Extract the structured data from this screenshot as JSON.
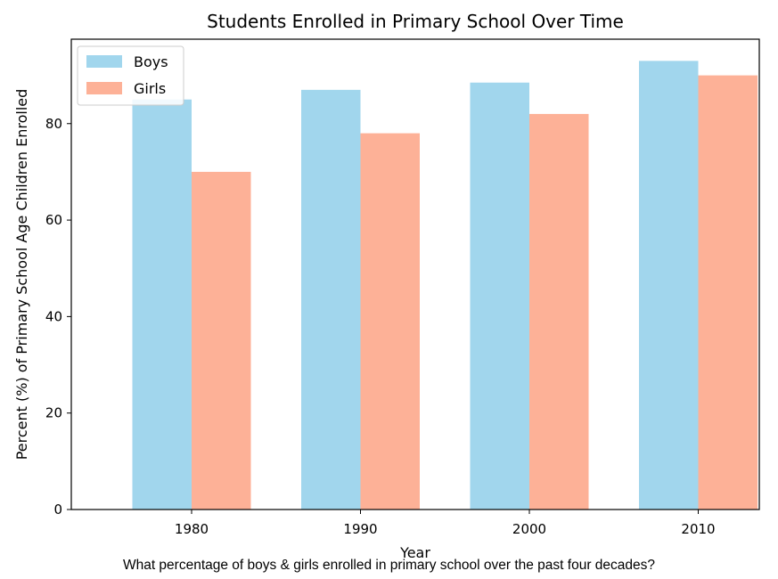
{
  "chart_data": {
    "type": "bar",
    "title": "Students Enrolled in Primary School Over Time",
    "xlabel": "Year",
    "ylabel": "Percent (%) of Primary School Age Children Enrolled",
    "categories": [
      "1980",
      "1990",
      "2000",
      "2010"
    ],
    "series": [
      {
        "name": "Boys",
        "values": [
          85,
          87,
          88.5,
          93
        ],
        "color": "#a1d6ed"
      },
      {
        "name": "Girls",
        "values": [
          70,
          78,
          82,
          90
        ],
        "color": "#fdb197"
      }
    ],
    "ylim": [
      0,
      97.5
    ],
    "yticks": [
      0,
      20,
      40,
      60,
      80
    ],
    "grid": false,
    "legend_position": "top-left"
  },
  "caption": "What percentage of boys & girls enrolled in primary school over the past four decades?"
}
